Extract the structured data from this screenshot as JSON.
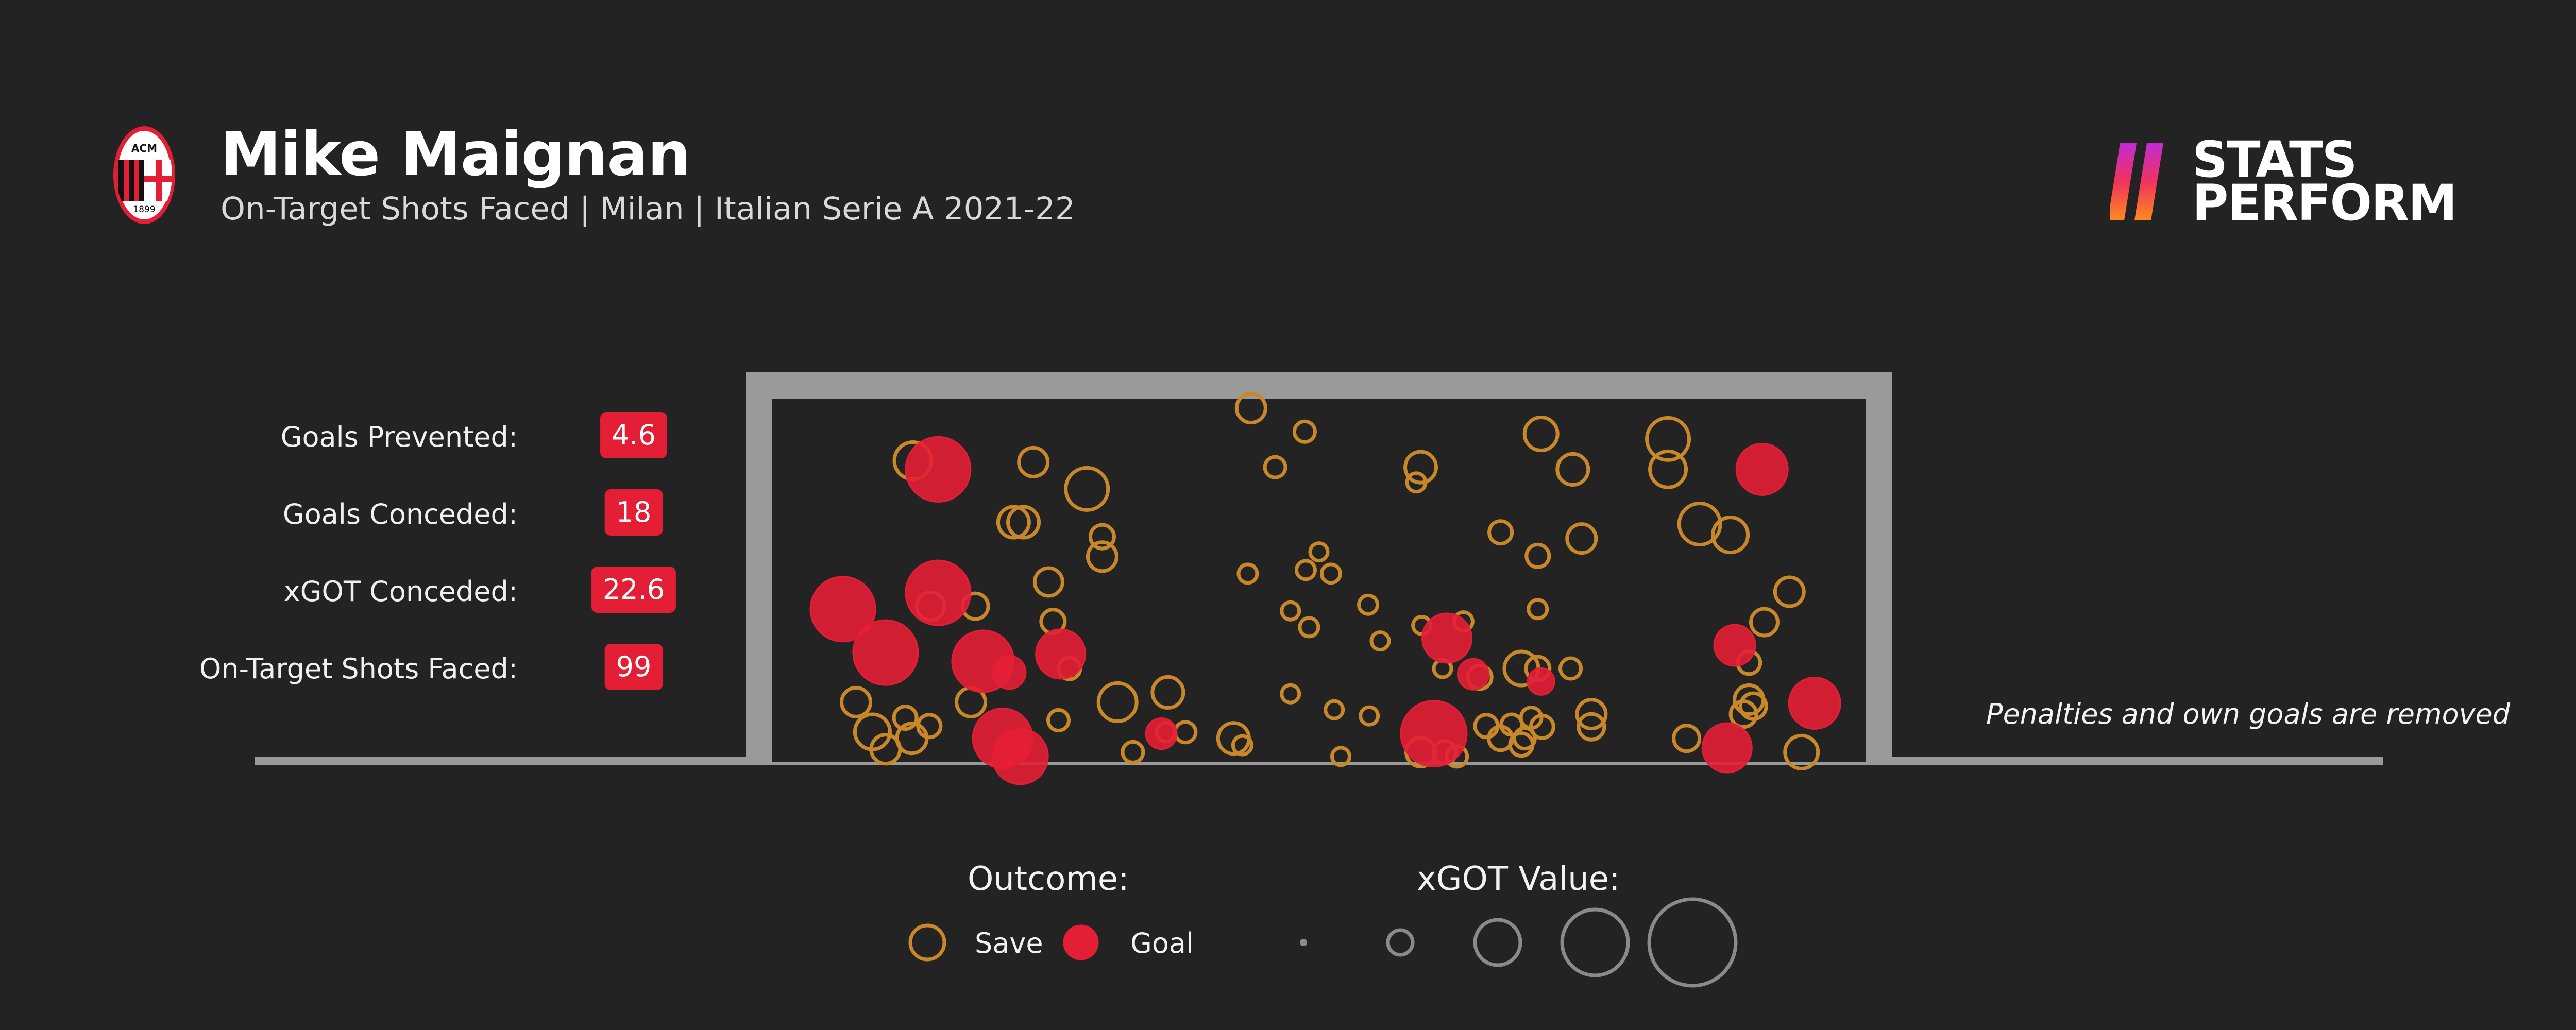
{
  "header": {
    "player_name": "Mike Maignan",
    "subtitle": "On-Target Shots Faced | Milan | Italian Serie A 2021-22",
    "crest_lettering_top": "ACM",
    "crest_lettering_bottom": "1899",
    "brand_line1": "STATS",
    "brand_line2": "PERFORM"
  },
  "stats": [
    {
      "label": "Goals Prevented:",
      "value": "4.6"
    },
    {
      "label": "Goals Conceded:",
      "value": "18"
    },
    {
      "label": "xGOT Conceded:",
      "value": "22.6"
    },
    {
      "label": "On-Target Shots Faced:",
      "value": "99"
    }
  ],
  "note": "Penalties and own goals are removed",
  "legend": {
    "outcome_title": "Outcome:",
    "save_label": "Save",
    "goal_label": "Goal",
    "xgot_title": "xGOT Value:",
    "xgot_sizes": [
      0.02,
      0.2,
      0.4,
      0.6,
      0.8
    ]
  },
  "colors": {
    "background": "#232323",
    "save": "#c8882a",
    "goal": "#e41e35",
    "frame": "#9a9a9a",
    "badge": "#e41e35"
  },
  "chart_data": {
    "type": "scatter",
    "x_range": [
      0,
      1
    ],
    "y_range": [
      0,
      1
    ],
    "size_metric": "xGOT",
    "series": [
      {
        "name": "Save",
        "points": [
          {
            "x": 0.438,
            "y": 0.975,
            "xgot": 0.2
          },
          {
            "x": 0.487,
            "y": 0.91,
            "xgot": 0.12
          },
          {
            "x": 0.129,
            "y": 0.83,
            "xgot": 0.28
          },
          {
            "x": 0.239,
            "y": 0.826,
            "xgot": 0.2
          },
          {
            "x": 0.46,
            "y": 0.812,
            "xgot": 0.12
          },
          {
            "x": 0.593,
            "y": 0.812,
            "xgot": 0.22
          },
          {
            "x": 0.703,
            "y": 0.904,
            "xgot": 0.24
          },
          {
            "x": 0.732,
            "y": 0.806,
            "xgot": 0.22
          },
          {
            "x": 0.819,
            "y": 0.89,
            "xgot": 0.33
          },
          {
            "x": 0.819,
            "y": 0.806,
            "xgot": 0.27
          },
          {
            "x": 0.288,
            "y": 0.752,
            "xgot": 0.33
          },
          {
            "x": 0.589,
            "y": 0.77,
            "xgot": 0.1
          },
          {
            "x": 0.221,
            "y": 0.66,
            "xgot": 0.22
          },
          {
            "x": 0.23,
            "y": 0.66,
            "xgot": 0.22
          },
          {
            "x": 0.302,
            "y": 0.62,
            "xgot": 0.15
          },
          {
            "x": 0.302,
            "y": 0.565,
            "xgot": 0.2
          },
          {
            "x": 0.666,
            "y": 0.632,
            "xgot": 0.14
          },
          {
            "x": 0.74,
            "y": 0.615,
            "xgot": 0.2
          },
          {
            "x": 0.848,
            "y": 0.655,
            "xgot": 0.32
          },
          {
            "x": 0.876,
            "y": 0.625,
            "xgot": 0.26
          },
          {
            "x": 0.7,
            "y": 0.567,
            "xgot": 0.14
          },
          {
            "x": 0.5,
            "y": 0.578,
            "xgot": 0.09
          },
          {
            "x": 0.435,
            "y": 0.518,
            "xgot": 0.1
          },
          {
            "x": 0.488,
            "y": 0.528,
            "xgot": 0.1
          },
          {
            "x": 0.511,
            "y": 0.518,
            "xgot": 0.1
          },
          {
            "x": 0.253,
            "y": 0.495,
            "xgot": 0.19
          },
          {
            "x": 0.145,
            "y": 0.428,
            "xgot": 0.19
          },
          {
            "x": 0.186,
            "y": 0.428,
            "xgot": 0.17
          },
          {
            "x": 0.474,
            "y": 0.415,
            "xgot": 0.09
          },
          {
            "x": 0.545,
            "y": 0.432,
            "xgot": 0.1
          },
          {
            "x": 0.594,
            "y": 0.375,
            "xgot": 0.09
          },
          {
            "x": 0.632,
            "y": 0.386,
            "xgot": 0.1
          },
          {
            "x": 0.7,
            "y": 0.42,
            "xgot": 0.1
          },
          {
            "x": 0.491,
            "y": 0.37,
            "xgot": 0.1
          },
          {
            "x": 0.257,
            "y": 0.386,
            "xgot": 0.15
          },
          {
            "x": 0.556,
            "y": 0.332,
            "xgot": 0.09
          },
          {
            "x": 0.907,
            "y": 0.384,
            "xgot": 0.18
          },
          {
            "x": 0.93,
            "y": 0.468,
            "xgot": 0.2
          },
          {
            "x": 0.893,
            "y": 0.272,
            "xgot": 0.14
          },
          {
            "x": 0.272,
            "y": 0.256,
            "xgot": 0.13
          },
          {
            "x": 0.613,
            "y": 0.256,
            "xgot": 0.09
          },
          {
            "x": 0.685,
            "y": 0.256,
            "xgot": 0.25
          },
          {
            "x": 0.647,
            "y": 0.232,
            "xgot": 0.15
          },
          {
            "x": 0.7,
            "y": 0.256,
            "xgot": 0.15
          },
          {
            "x": 0.73,
            "y": 0.256,
            "xgot": 0.12
          },
          {
            "x": 0.474,
            "y": 0.186,
            "xgot": 0.09
          },
          {
            "x": 0.316,
            "y": 0.163,
            "xgot": 0.29
          },
          {
            "x": 0.362,
            "y": 0.19,
            "xgot": 0.22
          },
          {
            "x": 0.077,
            "y": 0.163,
            "xgot": 0.2
          },
          {
            "x": 0.182,
            "y": 0.163,
            "xgot": 0.2
          },
          {
            "x": 0.122,
            "y": 0.12,
            "xgot": 0.14
          },
          {
            "x": 0.262,
            "y": 0.113,
            "xgot": 0.12
          },
          {
            "x": 0.514,
            "y": 0.142,
            "xgot": 0.09
          },
          {
            "x": 0.546,
            "y": 0.125,
            "xgot": 0.09
          },
          {
            "x": 0.676,
            "y": 0.101,
            "xgot": 0.12
          },
          {
            "x": 0.694,
            "y": 0.12,
            "xgot": 0.12
          },
          {
            "x": 0.704,
            "y": 0.095,
            "xgot": 0.14
          },
          {
            "x": 0.749,
            "y": 0.13,
            "xgot": 0.2
          },
          {
            "x": 0.749,
            "y": 0.095,
            "xgot": 0.17
          },
          {
            "x": 0.893,
            "y": 0.17,
            "xgot": 0.2
          },
          {
            "x": 0.897,
            "y": 0.152,
            "xgot": 0.17
          },
          {
            "x": 0.888,
            "y": 0.13,
            "xgot": 0.17
          },
          {
            "x": 0.092,
            "y": 0.081,
            "xgot": 0.26
          },
          {
            "x": 0.104,
            "y": 0.033,
            "xgot": 0.2
          },
          {
            "x": 0.128,
            "y": 0.063,
            "xgot": 0.21
          },
          {
            "x": 0.378,
            "y": 0.08,
            "xgot": 0.12
          },
          {
            "x": 0.36,
            "y": 0.08,
            "xgot": 0.1
          },
          {
            "x": 0.422,
            "y": 0.063,
            "xgot": 0.22
          },
          {
            "x": 0.43,
            "y": 0.044,
            "xgot": 0.1
          },
          {
            "x": 0.33,
            "y": 0.025,
            "xgot": 0.12
          },
          {
            "x": 0.666,
            "y": 0.063,
            "xgot": 0.15
          },
          {
            "x": 0.653,
            "y": 0.097,
            "xgot": 0.14
          },
          {
            "x": 0.685,
            "y": 0.046,
            "xgot": 0.14
          },
          {
            "x": 0.836,
            "y": 0.063,
            "xgot": 0.17
          },
          {
            "x": 0.593,
            "y": 0.025,
            "xgot": 0.2
          },
          {
            "x": 0.615,
            "y": 0.025,
            "xgot": 0.14
          },
          {
            "x": 0.626,
            "y": 0.013,
            "xgot": 0.12
          },
          {
            "x": 0.52,
            "y": 0.013,
            "xgot": 0.09
          },
          {
            "x": 0.941,
            "y": 0.025,
            "xgot": 0.24
          },
          {
            "x": 0.144,
            "y": 0.097,
            "xgot": 0.14
          },
          {
            "x": 0.688,
            "y": 0.063,
            "xgot": 0.12
          }
        ]
      },
      {
        "name": "Goal",
        "points": [
          {
            "x": 0.152,
            "y": 0.806,
            "xgot": 0.55
          },
          {
            "x": 0.905,
            "y": 0.806,
            "xgot": 0.42
          },
          {
            "x": 0.152,
            "y": 0.465,
            "xgot": 0.55
          },
          {
            "x": 0.065,
            "y": 0.42,
            "xgot": 0.55
          },
          {
            "x": 0.104,
            "y": 0.3,
            "xgot": 0.55
          },
          {
            "x": 0.193,
            "y": 0.276,
            "xgot": 0.52
          },
          {
            "x": 0.264,
            "y": 0.296,
            "xgot": 0.4
          },
          {
            "x": 0.217,
            "y": 0.245,
            "xgot": 0.24
          },
          {
            "x": 0.617,
            "y": 0.34,
            "xgot": 0.4
          },
          {
            "x": 0.641,
            "y": 0.24,
            "xgot": 0.22
          },
          {
            "x": 0.703,
            "y": 0.22,
            "xgot": 0.18
          },
          {
            "x": 0.88,
            "y": 0.32,
            "xgot": 0.32
          },
          {
            "x": 0.953,
            "y": 0.16,
            "xgot": 0.42
          },
          {
            "x": 0.211,
            "y": 0.063,
            "xgot": 0.5
          },
          {
            "x": 0.227,
            "y": 0.013,
            "xgot": 0.46
          },
          {
            "x": 0.356,
            "y": 0.076,
            "xgot": 0.22
          },
          {
            "x": 0.605,
            "y": 0.076,
            "xgot": 0.56
          },
          {
            "x": 0.873,
            "y": 0.037,
            "xgot": 0.4
          }
        ]
      }
    ]
  }
}
